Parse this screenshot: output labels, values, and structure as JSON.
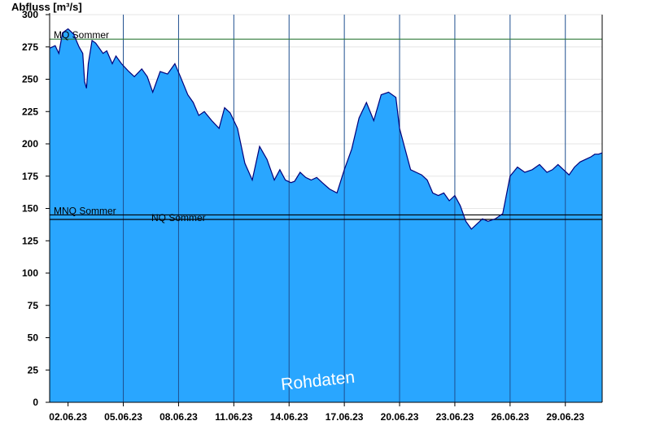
{
  "colors": {
    "area_fill": "#29a6ff",
    "area_line": "#00007a",
    "day_lines": "#1f4f8f",
    "mq_line": "#2f7a3a",
    "grid": "#e6e6e6"
  },
  "chart_data": {
    "type": "area",
    "ylabel": "Abfluss [m³/s]",
    "watermark": "Rohdaten",
    "ylim": [
      0,
      300
    ],
    "xlim": [
      0,
      30
    ],
    "yticks": [
      0,
      25,
      50,
      75,
      100,
      125,
      150,
      175,
      200,
      225,
      250,
      275,
      300
    ],
    "xtick_positions": [
      1,
      4,
      7,
      10,
      13,
      16,
      19,
      22,
      25,
      28
    ],
    "xtick_labels": [
      "02.06.23",
      "05.06.23",
      "08.06.23",
      "11.06.23",
      "14.06.23",
      "17.06.23",
      "20.06.23",
      "23.06.23",
      "26.06.23",
      "29.06.23"
    ],
    "grid": true,
    "reference_lines": [
      {
        "label": "MQ Sommer",
        "value": 281
      },
      {
        "label": "MNQ Sommer",
        "value": 145
      },
      {
        "label": "NQ Sommer",
        "value": 141.5
      }
    ],
    "series": [
      {
        "x": [
          0,
          0.3,
          0.5,
          0.7,
          1.0,
          1.3,
          1.6,
          1.8,
          1.9,
          2.0,
          2.1,
          2.3,
          2.5,
          2.9,
          3.1,
          3.4,
          3.6,
          3.9,
          4.3,
          4.6,
          5.0,
          5.3,
          5.6,
          6.0,
          6.4,
          6.8,
          7.1,
          7.5,
          7.8,
          8.1,
          8.4,
          8.8,
          9.2,
          9.5,
          9.8,
          10.2,
          10.6,
          11.0,
          11.4,
          11.8,
          12.2,
          12.5,
          12.8,
          13.1,
          13.3,
          13.6,
          13.9,
          14.2,
          14.5,
          14.8,
          15.2,
          15.6,
          16.0,
          16.4,
          16.8,
          17.2,
          17.6,
          18.0,
          18.4,
          18.8,
          19.0,
          19.3,
          19.6,
          19.9,
          20.2,
          20.5,
          20.8,
          21.1,
          21.4,
          21.7,
          22.0,
          22.3,
          22.6,
          22.9,
          23.2,
          23.5,
          23.8,
          24.2,
          24.6,
          25.0,
          25.4,
          25.8,
          26.2,
          26.6,
          27.0,
          27.3,
          27.6,
          27.9,
          28.2,
          28.5,
          28.8,
          29.1,
          29.4,
          29.6,
          29.8,
          30.0
        ],
        "y": [
          274,
          276,
          270,
          286,
          289,
          285,
          275,
          270,
          248,
          243,
          262,
          280,
          278,
          270,
          272,
          262,
          268,
          262,
          256,
          252,
          258,
          252,
          240,
          256,
          254,
          262,
          252,
          238,
          232,
          222,
          225,
          218,
          212,
          228,
          224,
          212,
          185,
          172,
          198,
          188,
          172,
          180,
          172,
          170,
          171,
          178,
          174,
          172,
          174,
          170,
          165,
          162,
          180,
          196,
          220,
          232,
          218,
          238,
          240,
          236,
          212,
          196,
          180,
          178,
          176,
          172,
          162,
          160,
          162,
          156,
          160,
          152,
          140,
          134,
          138,
          142,
          140,
          142,
          146,
          175,
          182,
          178,
          180,
          184,
          178,
          180,
          184,
          180,
          176,
          182,
          186,
          188,
          190,
          192,
          192,
          193
        ]
      }
    ]
  }
}
